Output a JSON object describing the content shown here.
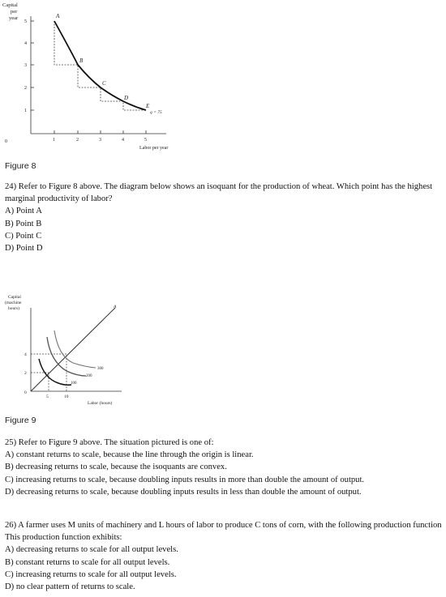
{
  "figure8": {
    "ylabel_lines": [
      "Capital",
      "per",
      "year"
    ],
    "xlabel": "Labor per year",
    "ticks_y": [
      "5",
      "4",
      "3",
      "2",
      "1"
    ],
    "ticks_x": [
      "0",
      "1",
      "2",
      "3",
      "4",
      "5"
    ],
    "points": [
      "A",
      "B",
      "C",
      "D",
      "E"
    ],
    "curve_label": "q = 75",
    "caption": "Figure 8"
  },
  "q24": {
    "stem": "24) Refer to Figure 8 above. The diagram below shows an isoquant for the production of wheat. Which point has the highest marginal productivity of labor?",
    "options": [
      "A) Point A",
      "B) Point B",
      "C) Point C",
      "D) Point D"
    ]
  },
  "figure9": {
    "ylabel_lines": [
      "Capital",
      "(machine",
      "hours)"
    ],
    "xlabel": "Labor (hours)",
    "ticks_y": [
      "4",
      "2",
      "0"
    ],
    "ticks_x": [
      "5",
      "10"
    ],
    "ray_label": "A",
    "isoquant_labels": [
      "300",
      "200",
      "100"
    ],
    "caption": "Figure 9"
  },
  "q25": {
    "stem": "25) Refer to Figure 9 above. The situation pictured is one of:",
    "options": [
      "A) constant returns to scale, because the line through the origin is linear.",
      "B) decreasing returns to scale, because the isoquants are convex.",
      "C) increasing returns to scale, because doubling inputs results in more than double the amount of output.",
      "D) decreasing returns to scale, because doubling inputs results in less than double the amount of output."
    ]
  },
  "q26": {
    "stem": "26) A farmer uses M units of machinery and L hours of labor to produce C tons of corn, with the following production function This production function exhibits:",
    "options": [
      "A) decreasing returns to scale for all output levels.",
      "B) constant returns to scale for all output levels.",
      "C) increasing returns to scale for all output levels.",
      "D) no clear pattern of returns to scale."
    ]
  }
}
